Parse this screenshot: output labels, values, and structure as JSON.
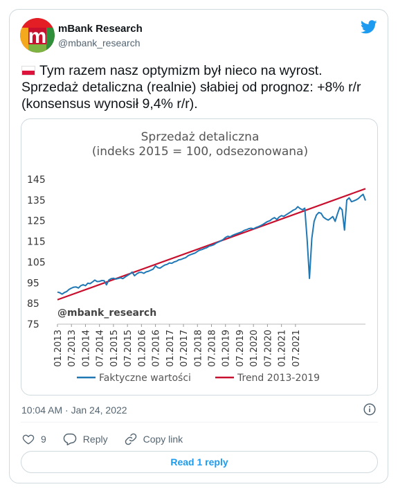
{
  "tweet": {
    "author_name": "mBank Research",
    "author_handle": "@mbank_research",
    "avatar_letter": "m",
    "text_lines": [
      "Tym razem nasz optymizm był nieco na wyrost.",
      "Sprzedaż detaliczna (realnie) słabiej od prognoz: +8% r/r",
      "(konsensus wynosił 9,4% r/r)."
    ],
    "flag_icon": "flag-poland-icon",
    "timestamp": "10:04 AM · Jan 24, 2022",
    "likes": "9",
    "reply_label": "Reply",
    "copy_label": "Copy link",
    "read_replies_label": "Read 1 reply",
    "colors": {
      "accent": "#1d9bf0",
      "muted": "#536471"
    }
  },
  "chart_data": {
    "type": "line",
    "title": "Sprzedaż detaliczna",
    "subtitle": "(indeks 2015 = 100, odsezonowana)",
    "watermark": "@mbank_research",
    "ylim": [
      75,
      145
    ],
    "yticks": [
      75,
      85,
      95,
      105,
      115,
      125,
      135,
      145
    ],
    "xticks": [
      "01.2013",
      "07.2013",
      "01.2014",
      "07.2014",
      "01.2015",
      "07.2015",
      "01.2016",
      "07.2016",
      "01.2017",
      "07.2017",
      "01.2018",
      "07.2018",
      "01.2019",
      "07.2019",
      "01.2020",
      "07.2020",
      "01.2021",
      "07.2021"
    ],
    "legend_position": "bottom",
    "series": [
      {
        "name": "Faktyczne wartości",
        "color": "#1f77b4",
        "start": "01.2013",
        "values": [
          90.5,
          90.2,
          89.5,
          90.3,
          90.8,
          91.8,
          92.4,
          92.9,
          93.0,
          92.5,
          93.6,
          94.1,
          93.6,
          94.8,
          94.6,
          95.4,
          96.3,
          95.6,
          95.7,
          96.1,
          96.0,
          94.0,
          96.3,
          97.0,
          97.2,
          96.8,
          97.1,
          97.4,
          97.0,
          97.8,
          98.5,
          99.2,
          100.2,
          98.4,
          99.3,
          100.0,
          100.1,
          99.6,
          100.3,
          100.6,
          101.1,
          101.6,
          103.2,
          102.3,
          102.1,
          102.9,
          103.6,
          103.9,
          104.6,
          104.4,
          105.1,
          105.4,
          106.1,
          106.3,
          106.8,
          107.2,
          108.1,
          108.6,
          109.0,
          109.4,
          110.2,
          110.8,
          111.1,
          111.6,
          112.0,
          112.7,
          113.0,
          113.4,
          114.2,
          114.7,
          115.3,
          115.9,
          116.9,
          117.5,
          117.2,
          117.9,
          118.4,
          118.8,
          119.2,
          119.6,
          120.3,
          120.7,
          121.2,
          121.4,
          121.1,
          121.7,
          122.1,
          122.6,
          123.2,
          123.9,
          124.6,
          125.0,
          125.9,
          126.5,
          125.6,
          126.8,
          127.5,
          127.1,
          127.9,
          128.6,
          129.3,
          130.1,
          130.6,
          131.8,
          130.9,
          130.3,
          131.1,
          116.0,
          97.1,
          116.5,
          124.7,
          127.8,
          129.0,
          128.6,
          126.7,
          125.9,
          125.3,
          126.1,
          127.0,
          124.7,
          128.3,
          131.5,
          130.3,
          120.5,
          135.0,
          136.1,
          134.2,
          134.6,
          135.1,
          135.8,
          136.9,
          137.8,
          134.8
        ]
      },
      {
        "name": "Trend 2013-2019",
        "color": "#c8102e",
        "start_value": 86.8,
        "end_value": 140.5
      }
    ]
  }
}
